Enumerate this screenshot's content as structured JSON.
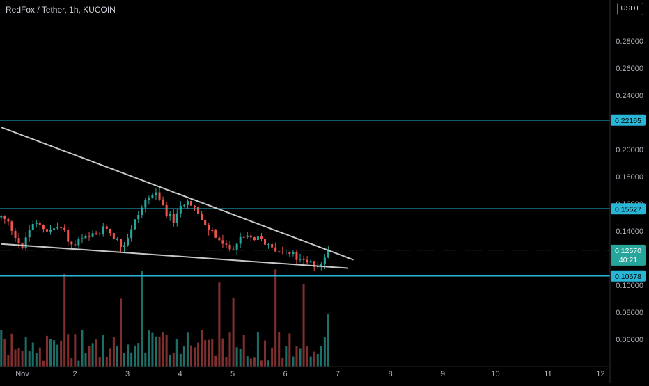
{
  "header": {
    "title": "RedFox / Tether, 1h, KUCOIN",
    "currency": "USDT"
  },
  "colors": {
    "background": "#000000",
    "up": "#26a69a",
    "down": "#ef5350",
    "level_line": "#29b6d6",
    "trendline": "#c8c8c8",
    "axis_text": "#b2b5be"
  },
  "chart_data": {
    "type": "candlestick",
    "symbol": "RedFox / Tether",
    "interval": "1h",
    "exchange": "KUCOIN",
    "ylim": [
      0.045,
      0.305
    ],
    "y_ticks": [
      "0.28000",
      "0.26000",
      "0.24000",
      "0.20000",
      "0.18000",
      "0.16000",
      "0.14000",
      "0.10000",
      "0.08000",
      "0.06000"
    ],
    "x_ticks": [
      "Nov",
      "2",
      "3",
      "4",
      "5",
      "6",
      "7",
      "8",
      "9",
      "10",
      "11",
      "12"
    ],
    "current_price": {
      "label": "0.12570",
      "value": 0.1257,
      "countdown": "40:21"
    },
    "horizontal_levels": [
      {
        "label": "0.22165",
        "value": 0.22165
      },
      {
        "label": "0.15627",
        "value": 0.15627
      },
      {
        "label": "0.10678",
        "value": 0.10678
      }
    ],
    "trendlines": [
      {
        "from": {
          "day": 0.6,
          "price": 0.2164
        },
        "to": {
          "day": 7.3,
          "price": 0.1187
        }
      },
      {
        "from": {
          "day": 0.6,
          "price": 0.1304
        },
        "to": {
          "day": 7.2,
          "price": 0.1125
        }
      }
    ],
    "price_path": [
      [
        0.6,
        0.15
      ],
      [
        0.75,
        0.145
      ],
      [
        0.9,
        0.135
      ],
      [
        1.0,
        0.125
      ],
      [
        1.1,
        0.14
      ],
      [
        1.3,
        0.146
      ],
      [
        1.5,
        0.14
      ],
      [
        1.7,
        0.143
      ],
      [
        1.8,
        0.139
      ],
      [
        1.95,
        0.128
      ],
      [
        2.1,
        0.133
      ],
      [
        2.3,
        0.135
      ],
      [
        2.5,
        0.139
      ],
      [
        2.6,
        0.143
      ],
      [
        2.7,
        0.138
      ],
      [
        2.9,
        0.128
      ],
      [
        3.05,
        0.139
      ],
      [
        3.2,
        0.152
      ],
      [
        3.35,
        0.163
      ],
      [
        3.5,
        0.168
      ],
      [
        3.65,
        0.16
      ],
      [
        3.8,
        0.15
      ],
      [
        3.9,
        0.147
      ],
      [
        4.05,
        0.16
      ],
      [
        4.15,
        0.165
      ],
      [
        4.3,
        0.156
      ],
      [
        4.45,
        0.143
      ],
      [
        4.6,
        0.14
      ],
      [
        4.75,
        0.133
      ],
      [
        4.9,
        0.126
      ],
      [
        5.05,
        0.13
      ],
      [
        5.2,
        0.134
      ],
      [
        5.4,
        0.135
      ],
      [
        5.6,
        0.132
      ],
      [
        5.8,
        0.128
      ],
      [
        6.0,
        0.124
      ],
      [
        6.15,
        0.122
      ],
      [
        6.3,
        0.117
      ],
      [
        6.45,
        0.116
      ],
      [
        6.6,
        0.115
      ],
      [
        6.75,
        0.119
      ],
      [
        6.82,
        0.1257
      ]
    ]
  }
}
